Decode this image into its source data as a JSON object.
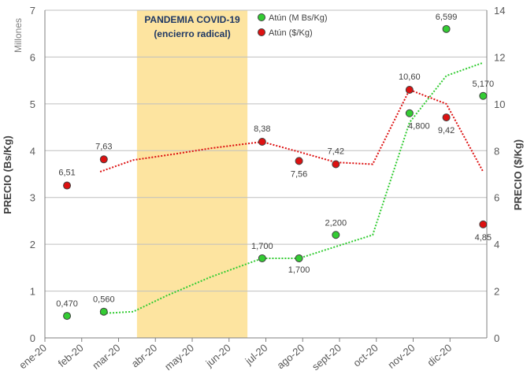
{
  "chart_data": {
    "type": "scatter",
    "x_categories": [
      "ene-20",
      "feb-20",
      "mar-20",
      "abr-20",
      "may-20",
      "jun-20",
      "jul-20",
      "ago-20",
      "sept-20",
      "oct-20",
      "nov-20",
      "dic-20"
    ],
    "y_left": {
      "label": "PRECIO (Bs/Kg)",
      "units": "Millones",
      "range": [
        0,
        7
      ],
      "ticks": [
        "0",
        "1",
        "2",
        "3",
        "4",
        "5",
        "6",
        "7"
      ]
    },
    "y_right": {
      "label": "PRECIO ($/Kg)",
      "range": [
        0,
        14
      ],
      "ticks": [
        "0",
        "2",
        "4",
        "6",
        "8",
        "10",
        "12",
        "14"
      ]
    },
    "grid": "horizontal",
    "legend_position": "top-right",
    "annotation": {
      "line1": "PANDEMIA COVID-19",
      "line2": "(encierro radical)",
      "start_x": 2.5,
      "end_x": 5.5,
      "color": "#fde4a0"
    },
    "series": [
      {
        "name": "Atún (M Bs/Kg)",
        "axis": "left",
        "color": "#33cc33",
        "points": [
          {
            "x": 0.6,
            "y": 0.47,
            "label": "0,470"
          },
          {
            "x": 1.6,
            "y": 0.56,
            "label": "0,560"
          },
          {
            "x": 5.9,
            "y": 1.7,
            "label": "1,700"
          },
          {
            "x": 6.9,
            "y": 1.7,
            "label": "1,700"
          },
          {
            "x": 7.9,
            "y": 2.2,
            "label": "2,200"
          },
          {
            "x": 9.9,
            "y": 4.8,
            "label": "4,800"
          },
          {
            "x": 10.9,
            "y": 6.599,
            "label": "6,599"
          },
          {
            "x": 11.9,
            "y": 5.17,
            "label": "5,170"
          }
        ],
        "trend": [
          [
            1.5,
            0.52
          ],
          [
            2.4,
            0.56
          ],
          [
            3.3,
            0.9
          ],
          [
            4.5,
            1.3
          ],
          [
            5.9,
            1.7
          ],
          [
            6.9,
            1.7
          ],
          [
            7.9,
            1.95
          ],
          [
            8.9,
            2.2
          ],
          [
            9.9,
            4.6
          ],
          [
            10.9,
            5.6
          ],
          [
            11.9,
            5.88
          ]
        ]
      },
      {
        "name": "Atún ($/Kg)",
        "axis": "right",
        "color": "#dd1111",
        "points": [
          {
            "x": 0.6,
            "y": 6.51,
            "label": "6,51"
          },
          {
            "x": 1.6,
            "y": 7.63,
            "label": "7,63"
          },
          {
            "x": 5.9,
            "y": 8.38,
            "label": "8,38"
          },
          {
            "x": 6.9,
            "y": 7.56,
            "label": "7,56"
          },
          {
            "x": 7.9,
            "y": 7.42,
            "label": "7,42"
          },
          {
            "x": 9.9,
            "y": 10.6,
            "label": "10,60"
          },
          {
            "x": 10.9,
            "y": 9.42,
            "label": "9,42"
          },
          {
            "x": 11.9,
            "y": 4.85,
            "label": "4,85"
          }
        ],
        "trend": [
          [
            1.5,
            7.1
          ],
          [
            2.4,
            7.6
          ],
          [
            3.5,
            7.85
          ],
          [
            4.5,
            8.1
          ],
          [
            5.9,
            8.38
          ],
          [
            6.9,
            7.95
          ],
          [
            7.9,
            7.5
          ],
          [
            8.9,
            7.42
          ],
          [
            9.9,
            10.6
          ],
          [
            10.9,
            10.0
          ],
          [
            11.9,
            7.1
          ]
        ]
      }
    ]
  }
}
